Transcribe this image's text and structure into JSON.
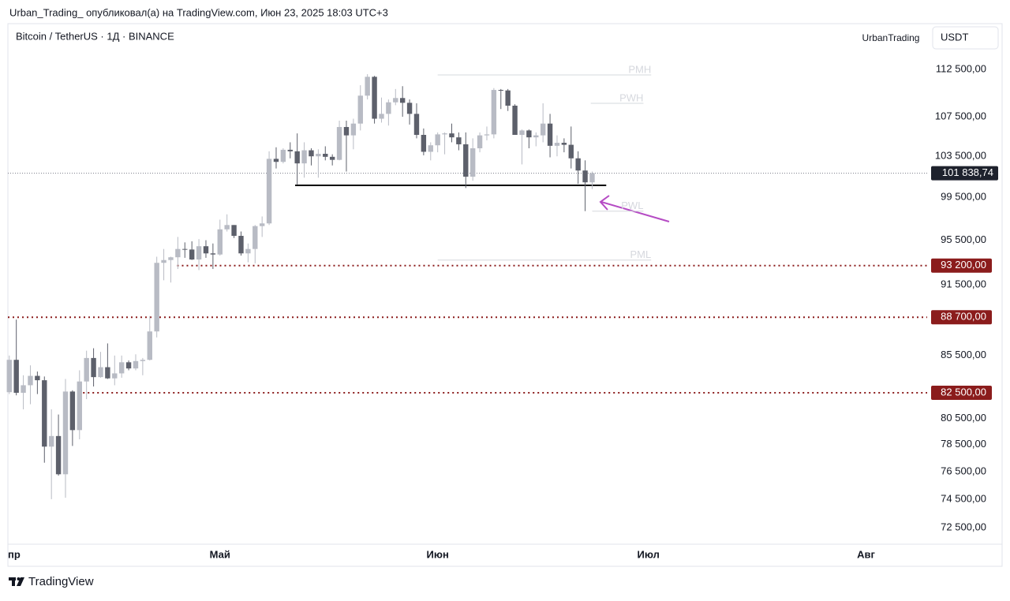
{
  "header": {
    "published": "Urban_Trading_ опубликовал(а) на TradingView.com, Июн 23, 2025 18:03 UTC+3",
    "author_badge": "UrbanTrading",
    "currency": "USDT"
  },
  "footer": {
    "brand": "TradingView"
  },
  "chart_data": {
    "type": "candlestick",
    "title": "Bitcoin / TetherUS · 1Д · BINANCE",
    "log_scale": true,
    "up_color": "#b8bbc4",
    "down_color": "#5d606b",
    "xlim": [
      -0.2,
      130.7
    ],
    "xticks": [
      {
        "value": 0,
        "label": "пр"
      },
      {
        "value": 30,
        "label": "Май"
      },
      {
        "value": 61,
        "label": "Июн"
      },
      {
        "value": 91,
        "label": "Июл"
      },
      {
        "value": 122,
        "label": "Авг"
      }
    ],
    "ylim": [
      71350,
      117540
    ],
    "yticks": [
      {
        "value": 112500,
        "label": "112 500,00"
      },
      {
        "value": 107500,
        "label": "107 500,00"
      },
      {
        "value": 103500,
        "label": "103 500,00"
      },
      {
        "value": 99500,
        "label": "99 500,00"
      },
      {
        "value": 95500,
        "label": "95 500,00"
      },
      {
        "value": 91500,
        "label": "91 500,00"
      },
      {
        "value": 85500,
        "label": "85 500,00"
      },
      {
        "value": 80500,
        "label": "80 500,00"
      },
      {
        "value": 78500,
        "label": "78 500,00"
      },
      {
        "value": 76500,
        "label": "76 500,00"
      },
      {
        "value": 74500,
        "label": "74 500,00"
      },
      {
        "value": 72500,
        "label": "72 500,00"
      }
    ],
    "open": [
      82550,
      85150,
      82500,
      83100,
      83850,
      83500,
      78350,
      79150,
      76300,
      82600,
      79600,
      83400,
      85300,
      83750,
      84550,
      83650,
      84050,
      84950,
      84450,
      85050,
      85150,
      87500,
      93450,
      93700,
      93950,
      94700,
      94650,
      93750,
      94950,
      94300,
      94200,
      96500,
      96900,
      95900,
      94300,
      94700,
      96800,
      97050,
      103250,
      102950,
      104150,
      104000,
      102800,
      104100,
      103500,
      103750,
      103450,
      103150,
      106450,
      105600,
      106800,
      109700,
      111700,
      107300,
      107800,
      109000,
      109450,
      108950,
      107800,
      105650,
      103950,
      104600,
      105700,
      105800,
      105400,
      104700,
      101500,
      104300,
      105600,
      105700,
      110300,
      110250,
      108650,
      105650,
      106100,
      105400,
      105600,
      106800,
      104550,
      104850,
      104650,
      103300,
      102100,
      100950
    ],
    "high": [
      85500,
      88500,
      83900,
      84700,
      84200,
      83800,
      81200,
      80800,
      83600,
      82700,
      84300,
      85900,
      86100,
      85800,
      86500,
      85500,
      85500,
      85100,
      85600,
      85300,
      88800,
      94000,
      94700,
      94000,
      95800,
      95300,
      95400,
      95600,
      95500,
      95200,
      97400,
      97900,
      96900,
      96300,
      95200,
      96900,
      97700,
      104000,
      104400,
      104300,
      104900,
      105800,
      104900,
      104300,
      104200,
      104500,
      103700,
      107100,
      107100,
      107300,
      110800,
      111980,
      111800,
      109500,
      109300,
      110400,
      110700,
      109300,
      108900,
      106300,
      104900,
      105900,
      105900,
      106800,
      105900,
      105900,
      105300,
      105900,
      106500,
      110500,
      110400,
      110400,
      108800,
      106200,
      106200,
      105900,
      108900,
      107800,
      105600,
      105300,
      106500,
      104000,
      103100,
      102000
    ],
    "low": [
      82400,
      82300,
      81200,
      81600,
      82400,
      77150,
      74500,
      76200,
      74600,
      78400,
      78900,
      82000,
      83000,
      83700,
      83600,
      83100,
      83700,
      84300,
      84300,
      83900,
      85100,
      87000,
      91900,
      91700,
      92900,
      93900,
      93700,
      92800,
      93900,
      92900,
      94100,
      96300,
      95700,
      94100,
      93500,
      93400,
      95800,
      96900,
      102300,
      102800,
      103300,
      100700,
      101400,
      102600,
      101400,
      103100,
      102600,
      103100,
      102000,
      104200,
      106100,
      109300,
      106800,
      106900,
      106600,
      108700,
      107500,
      106700,
      105300,
      103600,
      103100,
      103900,
      103700,
      104900,
      104100,
      100400,
      101100,
      103900,
      105100,
      105300,
      108300,
      108100,
      105700,
      102700,
      104300,
      104500,
      104900,
      103400,
      103500,
      103900,
      102300,
      100800,
      98200,
      100300
    ],
    "close": [
      85150,
      82500,
      83100,
      83850,
      83500,
      78350,
      79150,
      76300,
      82600,
      79600,
      83400,
      85300,
      83750,
      84550,
      83650,
      84050,
      84950,
      84450,
      85050,
      85150,
      87500,
      93450,
      93700,
      93950,
      94700,
      94650,
      93750,
      94950,
      94300,
      94200,
      96500,
      96900,
      95900,
      94300,
      94700,
      96800,
      97050,
      103250,
      102950,
      104150,
      104000,
      102800,
      104100,
      103500,
      103750,
      103450,
      103150,
      106450,
      105600,
      106800,
      109700,
      111700,
      107300,
      107800,
      109000,
      109450,
      108950,
      107800,
      105650,
      103950,
      104600,
      105700,
      105800,
      105400,
      104700,
      101500,
      104300,
      105600,
      105700,
      110300,
      110250,
      108650,
      105650,
      106100,
      105400,
      105600,
      106800,
      104550,
      104850,
      104650,
      103300,
      102100,
      100950,
      101838.74
    ],
    "last_price": {
      "value": 101838.74,
      "label": "101 838,74",
      "color": "#1e222d"
    },
    "levels": [
      {
        "value": 93200,
        "label": "93 200,00",
        "x0": 23.9,
        "color": "#8b1c1c"
      },
      {
        "value": 88700,
        "label": "88 700,00",
        "x0": -0.2,
        "color": "#8b1c1c"
      },
      {
        "value": 82500,
        "label": "82 500,00",
        "x0": 10.5,
        "color": "#8b1c1c"
      }
    ],
    "drawings": [
      {
        "value": 100660,
        "x0": 40.7,
        "x1": 85,
        "color": "#000000"
      },
      {
        "label": "PMH",
        "value": 111900,
        "x0": 61,
        "x1": 91.4,
        "color": "#d6d8de"
      },
      {
        "label": "PWH",
        "value": 108900,
        "x0": 82.8,
        "x1": 90.3,
        "color": "#d6d8de"
      },
      {
        "label": "PWL",
        "value": 98200,
        "x0": 83,
        "x1": 90.3,
        "color": "#d6d8de"
      },
      {
        "label": "PML",
        "value": 93700,
        "x0": 61,
        "x1": 91.4,
        "color": "#d6d8de"
      }
    ]
  }
}
